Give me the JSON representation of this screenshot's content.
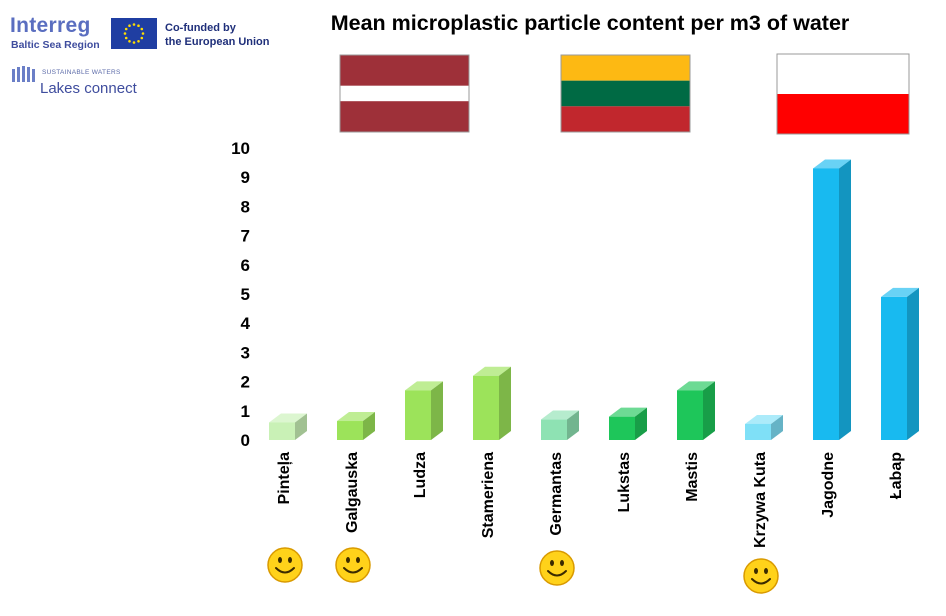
{
  "header": {
    "logo_interreg": "Interreg",
    "logo_region": "Baltic Sea Region",
    "cofunded_line1": "Co-funded by",
    "cofunded_line2": "the European Union",
    "sw_small": "SUSTAINABLE WATERS",
    "lakes": "Lakes connect"
  },
  "chart_data": {
    "type": "bar",
    "title": "Mean microplastic particle content per m3 of water",
    "xlabel": "",
    "ylabel": "",
    "ylim": [
      0,
      10
    ],
    "yticks": [
      "0",
      "1",
      "2",
      "3",
      "4",
      "5",
      "6",
      "7",
      "8",
      "9",
      "10"
    ],
    "categories": [
      "Pinteļa",
      "Galgauska",
      "Ludza",
      "Stameriena",
      "Germantas",
      "Lukstas",
      "Mastis",
      "Krzywa Kuta",
      "Jagodne",
      "Łabap"
    ],
    "values": [
      0.6,
      0.65,
      1.7,
      2.2,
      0.7,
      0.8,
      1.7,
      0.55,
      9.3,
      4.9
    ],
    "colors": [
      "#c9f1b6",
      "#9ce35a",
      "#9ce35a",
      "#9ce35a",
      "#8ee2b3",
      "#1ec65a",
      "#1ec65a",
      "#7fe0f7",
      "#18baf0",
      "#18baf0"
    ],
    "flags": [
      {
        "country": "Latvia",
        "stripes": [
          "#9e3039",
          "#ffffff",
          "#9e3039"
        ]
      },
      {
        "country": "Lithuania",
        "stripes": [
          "#fdb913",
          "#006a44",
          "#c1272d"
        ]
      },
      {
        "country": "Poland",
        "stripes": [
          "#ffffff",
          "#ff0000"
        ]
      }
    ],
    "smiley_under": [
      "Pinteļa",
      "Galgauska",
      "Germantas",
      "Krzywa Kuta"
    ],
    "grid": false,
    "legend": "none"
  }
}
